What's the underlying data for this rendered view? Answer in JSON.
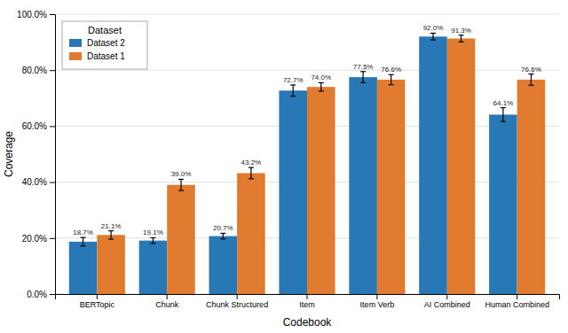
{
  "chart_data": {
    "type": "bar",
    "categories": [
      "BERTopic",
      "Chunk",
      "Chunk Structured",
      "Item",
      "Item Verb",
      "AI Combined",
      "Human Combined"
    ],
    "series": [
      {
        "name": "Dataset 2",
        "color": "#2878b5",
        "values": [
          0.187,
          0.191,
          0.207,
          0.727,
          0.775,
          0.92,
          0.641
        ],
        "errors": [
          0.015,
          0.01,
          0.01,
          0.02,
          0.02,
          0.012,
          0.025
        ],
        "value_labels": [
          "18.7%",
          "19.1%",
          "20.7%",
          "72.7%",
          "77.5%",
          "92.0%",
          "64.1%"
        ]
      },
      {
        "name": "Dataset 1",
        "color": "#e07b30",
        "values": [
          0.211,
          0.39,
          0.432,
          0.74,
          0.766,
          0.913,
          0.766
        ],
        "errors": [
          0.015,
          0.02,
          0.02,
          0.015,
          0.018,
          0.012,
          0.02
        ],
        "value_labels": [
          "21.1%",
          "39.0%",
          "43.2%",
          "74.0%",
          "76.6%",
          "91.3%",
          "76.6%"
        ]
      }
    ],
    "xlabel": "Codebook",
    "ylabel": "Coverage",
    "ylim": [
      0.0,
      1.0
    ],
    "yticks": [
      {
        "value": 0.0,
        "label": "0.0%"
      },
      {
        "value": 0.2,
        "label": "20.0%"
      },
      {
        "value": 0.4,
        "label": "40.0%"
      },
      {
        "value": 0.6,
        "label": "60.0%"
      },
      {
        "value": 0.8,
        "label": "80.0%"
      },
      {
        "value": 1.0,
        "label": "100.0%"
      }
    ],
    "grid": true,
    "data_labels": true,
    "legend": "upper left",
    "legend_title": "Dataset"
  }
}
